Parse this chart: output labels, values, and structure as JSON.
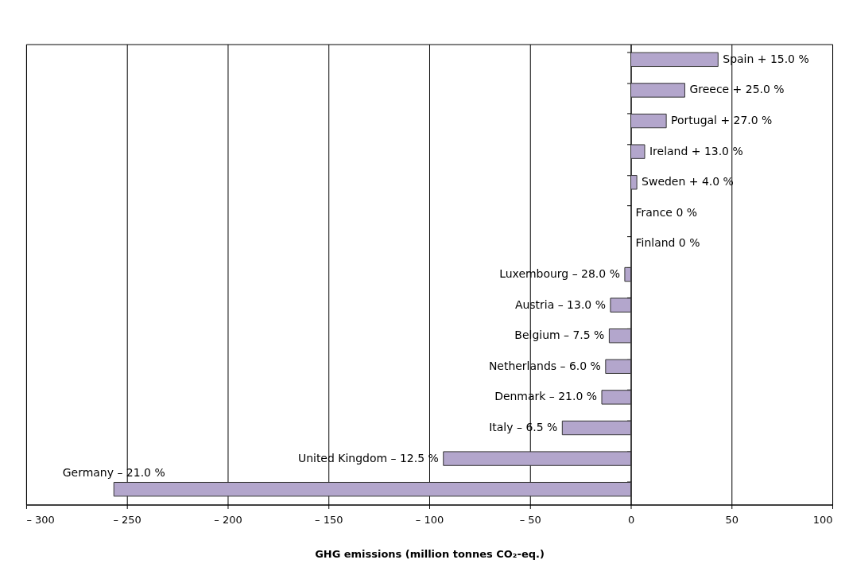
{
  "chart_data": {
    "type": "bar",
    "orientation": "horizontal",
    "xlabel": "GHG emissions (million tonnes CO₂-eq.)",
    "categories": [
      null,
      null,
      null,
      null,
      null,
      null,
      null,
      null,
      null,
      null,
      null,
      null,
      null,
      null,
      null
    ],
    "values": [
      43.3,
      26.8,
      17.6,
      6.9,
      3.0,
      0,
      0,
      -3.0,
      -10.1,
      -10.7,
      -12.5,
      -14.4,
      -34.0,
      -93.0,
      -256.5
    ],
    "annotations": [
      "Spain + 15.0 %",
      "Greece + 25.0 %",
      "Portugal + 27.0 %",
      "Ireland + 13.0 %",
      "Sweden + 4.0 %",
      "France 0 %",
      "Finland 0 %",
      "Luxembourg – 28.0 %",
      "Austria – 13.0 %",
      "Belgium – 7.5 %",
      "Netherlands – 6.0 %",
      "Denmark – 21.0 %",
      "Italy – 6.5 %",
      "United Kingdom – 12.5 %",
      "Germany – 21.0 %"
    ],
    "color": "#b3a6cc",
    "xlim": [
      -300,
      100
    ],
    "xticks": [
      {
        "value": -300,
        "label": "– 300"
      },
      {
        "value": -250,
        "label": "– 250"
      },
      {
        "value": -200,
        "label": "– 200"
      },
      {
        "value": -150,
        "label": "– 150"
      },
      {
        "value": -100,
        "label": "– 100"
      },
      {
        "value": -50,
        "label": "– 50"
      },
      0,
      50,
      100
    ],
    "grid": "x"
  }
}
